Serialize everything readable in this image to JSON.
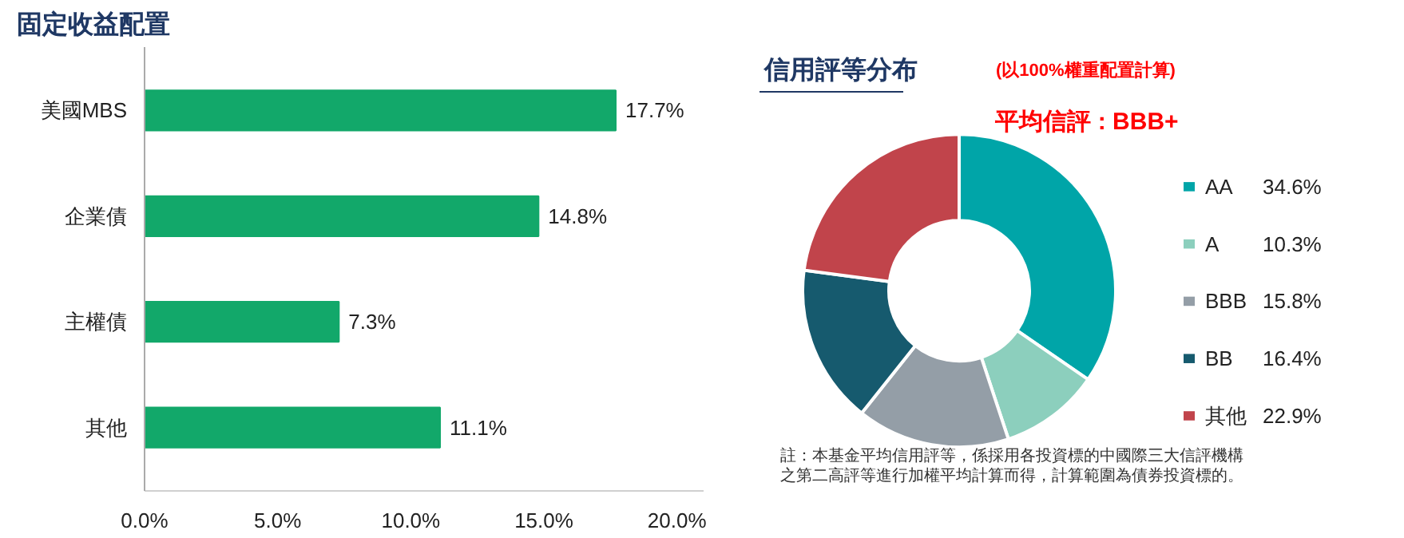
{
  "chart_data": [
    {
      "type": "bar",
      "title": "固定收益配置",
      "orientation": "horizontal",
      "categories": [
        "美國MBS",
        "企業債",
        "主權債",
        "其他"
      ],
      "values": [
        17.7,
        14.8,
        7.3,
        11.1
      ],
      "color": "#12a86a",
      "xlim": [
        0,
        21
      ],
      "xticks": [
        {
          "value": 0,
          "label": "0.0%"
        },
        {
          "value": 5,
          "label": "5.0%"
        },
        {
          "value": 10,
          "label": "10.0%"
        },
        {
          "value": 15,
          "label": "15.0%"
        },
        {
          "value": 20,
          "label": "20.0%"
        }
      ],
      "value_labels": [
        "17.7%",
        "14.8%",
        "7.3%",
        "11.1%"
      ],
      "grid": false
    },
    {
      "type": "donut",
      "title": "信用評等分布",
      "subtitle": "(以100%權重配置計算)",
      "categories": [
        "AA",
        "A",
        "BBB",
        "BB",
        "其他"
      ],
      "values": [
        34.6,
        10.3,
        15.8,
        16.4,
        22.9
      ],
      "colors": [
        "#00a5a8",
        "#8ccfbd",
        "#949ea7",
        "#165a6e",
        "#c1444b"
      ],
      "value_labels": [
        "34.6%",
        "10.3%",
        "15.8%",
        "16.4%",
        "22.9%"
      ],
      "legend": "right",
      "annotations": [
        "平均信評 : BBB+",
        "註：本基金平均信用評等，係採用各投資標的中國際三大信評機構之第二高評等進行加權平均計算而得，計算範圍為債券投資標的。"
      ]
    }
  ]
}
